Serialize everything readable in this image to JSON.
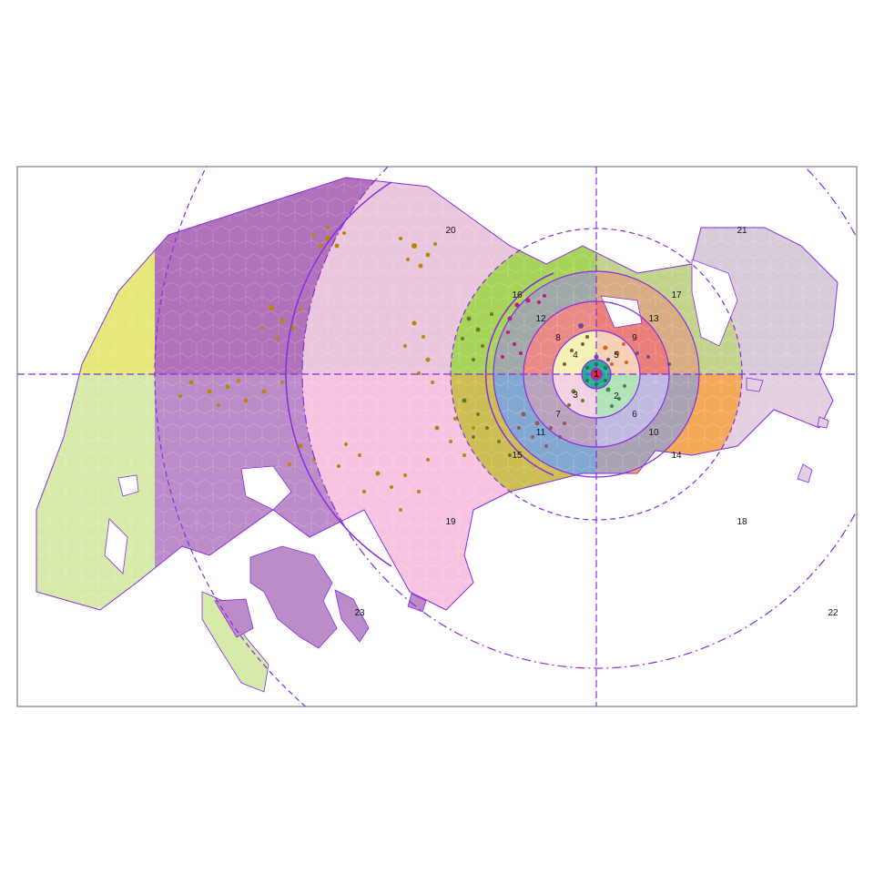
{
  "colors": {
    "ring_line": "#8a2be2",
    "panel_border": "#666666",
    "hex_outline": "#8a2be2"
  },
  "diagram": {
    "zone_labels": [
      "1",
      "2",
      "3",
      "4",
      "5",
      "6",
      "7",
      "8",
      "9",
      "10",
      "11",
      "12",
      "13",
      "14",
      "15",
      "16",
      "17",
      "18",
      "19",
      "20",
      "21",
      "22",
      "23"
    ]
  }
}
